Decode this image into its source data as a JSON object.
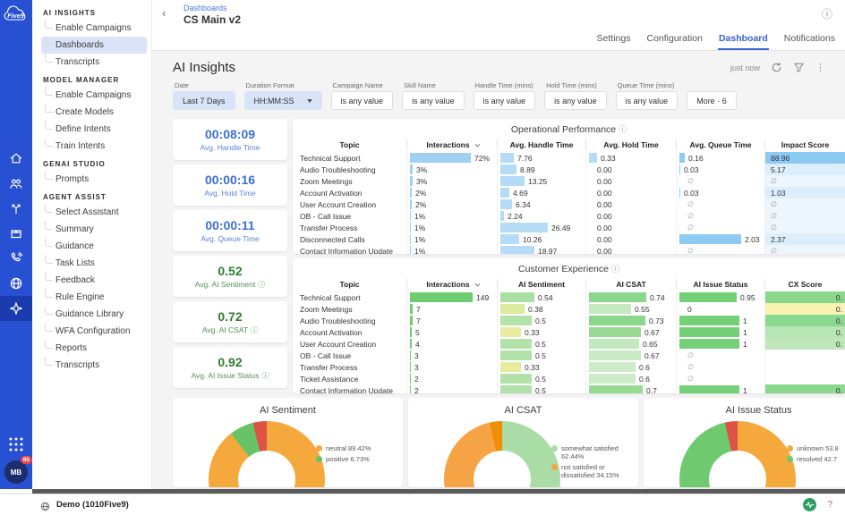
{
  "brand": {
    "logo_text": "Five9",
    "rail_color": "#2750d2",
    "accent_blue": "#3565d2"
  },
  "rail": {
    "icons": [
      {
        "name": "home"
      },
      {
        "name": "users"
      },
      {
        "name": "call-split"
      },
      {
        "name": "package"
      },
      {
        "name": "phone-outbound"
      },
      {
        "name": "globe"
      },
      {
        "name": "ai-assist",
        "selected": true
      }
    ],
    "avatar": {
      "initials": "MB",
      "badge": "85"
    }
  },
  "sidebar": {
    "sections": [
      {
        "title": "AI INSIGHTS",
        "items": [
          {
            "label": "Enable Campaigns"
          },
          {
            "label": "Dashboards",
            "selected": true
          },
          {
            "label": "Transcripts"
          }
        ]
      },
      {
        "title": "MODEL MANAGER",
        "items": [
          {
            "label": "Enable Campaigns"
          },
          {
            "label": "Create Models"
          },
          {
            "label": "Define Intents"
          },
          {
            "label": "Train Intents"
          }
        ]
      },
      {
        "title": "GENAI STUDIO",
        "items": [
          {
            "label": "Prompts"
          }
        ]
      },
      {
        "title": "AGENT ASSIST",
        "items": [
          {
            "label": "Select Assistant"
          },
          {
            "label": "Summary"
          },
          {
            "label": "Guidance"
          },
          {
            "label": "Task Lists"
          },
          {
            "label": "Feedback"
          },
          {
            "label": "Rule Engine"
          },
          {
            "label": "Guidance Library"
          },
          {
            "label": "WFA Configuration"
          },
          {
            "label": "Reports"
          },
          {
            "label": "Transcripts"
          }
        ]
      }
    ]
  },
  "header": {
    "breadcrumb": "Dashboards",
    "title": "CS Main v2",
    "tabs": [
      {
        "label": "Settings"
      },
      {
        "label": "Configuration"
      },
      {
        "label": "Dashboard",
        "active": true
      },
      {
        "label": "Notifications"
      }
    ]
  },
  "page": {
    "title": "AI Insights",
    "updated": "just now"
  },
  "filters": [
    {
      "label": "Date",
      "value": "Last 7 Days",
      "active": true
    },
    {
      "label": "Duration Format",
      "value": "HH:MM:SS",
      "active": true,
      "dropdown": true
    },
    {
      "label": "Campaign Name",
      "value": "is any value"
    },
    {
      "label": "Skill Name",
      "value": "is any value"
    },
    {
      "label": "Handle Time (mins)",
      "value": "is any value"
    },
    {
      "label": "Hold Time (mins)",
      "value": "is any value"
    },
    {
      "label": "Queue Time (mins)",
      "value": "is any value"
    },
    {
      "label": "",
      "value": "More · 6"
    }
  ],
  "kpis": [
    {
      "value": "00:08:09",
      "label": "Avg. Handle Time",
      "color": "blue"
    },
    {
      "value": "00:00:16",
      "label": "Avg. Hold Time",
      "color": "blue"
    },
    {
      "value": "00:00:11",
      "label": "Avg. Queue Time",
      "color": "blue"
    },
    {
      "value": "0.52",
      "label": "Avg. AI Sentiment",
      "color": "green",
      "info": true
    },
    {
      "value": "0.72",
      "label": "Avg. AI CSAT",
      "color": "green",
      "info": true
    },
    {
      "value": "0.92",
      "label": "Avg. AI Issue Status",
      "color": "green",
      "info": true
    }
  ],
  "op_table": {
    "title": "Operational Performance",
    "columns": [
      "Topic",
      "Interactions",
      "Avg. Handle Time",
      "Avg. Hold Time",
      "Avg. Queue Time",
      "Impact Score"
    ],
    "rows": [
      {
        "topic": "Technical Support",
        "interactions": {
          "v": "72%",
          "bar": 1
        },
        "aht": {
          "v": "7.76",
          "bar": 0.29
        },
        "hold": {
          "v": "0.33",
          "bar": 1
        },
        "queue": {
          "v": "0.16",
          "bar": 0.08
        },
        "impact": {
          "v": "88.96",
          "bg": "#8cc9f3"
        }
      },
      {
        "topic": "Audio Troubleshooting",
        "interactions": {
          "v": "3%",
          "bar": 0.042
        },
        "aht": {
          "v": "8.89",
          "bar": 0.34
        },
        "hold": {
          "v": "0.00",
          "bar": 0
        },
        "queue": {
          "v": "0.03",
          "bar": 0.015
        },
        "impact": {
          "v": "5.17",
          "bg": "#dcedfb"
        }
      },
      {
        "topic": "Zoom Meetings",
        "interactions": {
          "v": "3%",
          "bar": 0.042
        },
        "aht": {
          "v": "13.25",
          "bar": 0.5
        },
        "hold": {
          "v": "0.00",
          "bar": 0
        },
        "queue": {
          "v": "∅",
          "bar": 0
        },
        "impact": {
          "v": "∅",
          "bg": "#edf5fd"
        }
      },
      {
        "topic": "Account Activation",
        "interactions": {
          "v": "2%",
          "bar": 0.028
        },
        "aht": {
          "v": "4.69",
          "bar": 0.18
        },
        "hold": {
          "v": "0.00",
          "bar": 0
        },
        "queue": {
          "v": "0.03",
          "bar": 0.015
        },
        "impact": {
          "v": "1.03",
          "bg": "#dcedfb"
        }
      },
      {
        "topic": "User Account Creation",
        "interactions": {
          "v": "2%",
          "bar": 0.028
        },
        "aht": {
          "v": "6.34",
          "bar": 0.24
        },
        "hold": {
          "v": "0.00",
          "bar": 0
        },
        "queue": {
          "v": "∅",
          "bar": 0
        },
        "impact": {
          "v": "∅",
          "bg": "#edf5fd"
        }
      },
      {
        "topic": "OB - Call Issue",
        "interactions": {
          "v": "1%",
          "bar": 0.014
        },
        "aht": {
          "v": "2.24",
          "bar": 0.08
        },
        "hold": {
          "v": "0.00",
          "bar": 0
        },
        "queue": {
          "v": "∅",
          "bar": 0
        },
        "impact": {
          "v": "∅",
          "bg": "#edf5fd"
        }
      },
      {
        "topic": "Transfer Process",
        "interactions": {
          "v": "1%",
          "bar": 0.014
        },
        "aht": {
          "v": "26.49",
          "bar": 1
        },
        "hold": {
          "v": "0.00",
          "bar": 0
        },
        "queue": {
          "v": "∅",
          "bar": 0
        },
        "impact": {
          "v": "∅",
          "bg": "#edf5fd"
        }
      },
      {
        "topic": "Disconnected Calls",
        "interactions": {
          "v": "1%",
          "bar": 0.014
        },
        "aht": {
          "v": "10.26",
          "bar": 0.39
        },
        "hold": {
          "v": "0.00",
          "bar": 0
        },
        "queue": {
          "v": "2.03",
          "bar": 1
        },
        "impact": {
          "v": "2.37",
          "bg": "#dcedfb"
        }
      },
      {
        "topic": "Contact Information Update",
        "interactions": {
          "v": "1%",
          "bar": 0.014
        },
        "aht": {
          "v": "18.97",
          "bar": 0.72
        },
        "hold": {
          "v": "0.00",
          "bar": 0
        },
        "queue": {
          "v": "∅",
          "bar": 0
        },
        "impact": {
          "v": "∅",
          "bg": "#edf5fd"
        }
      }
    ]
  },
  "cx_table": {
    "title": "Customer Experience",
    "columns": [
      "Topic",
      "Interactions",
      "AI Sentiment",
      "AI CSAT",
      "AI Issue Status",
      "CX Score"
    ],
    "rows": [
      {
        "topic": "Technical Support",
        "interactions": {
          "v": "149",
          "bar": 1,
          "c": "#6ecc72"
        },
        "sent": {
          "v": "0.54",
          "bar": 0.54,
          "c": "#a9dfa3"
        },
        "csat": {
          "v": "0.74",
          "bar": 0.74,
          "c": "#8bd78c"
        },
        "issue": {
          "v": "0.95",
          "bar": 0.95,
          "c": "#74d077"
        },
        "cx": {
          "v": "0.",
          "bg": "#8ad88d"
        }
      },
      {
        "topic": "Zoom Meetings",
        "interactions": {
          "v": "7",
          "bar": 0.047,
          "c": "#6ecc72"
        },
        "sent": {
          "v": "0.38",
          "bar": 0.38,
          "c": "#dcea9e"
        },
        "csat": {
          "v": "0.55",
          "bar": 0.55,
          "c": "#c6e9c1"
        },
        "issue": {
          "v": "0",
          "bar": 0
        },
        "cx": {
          "v": "0.",
          "bg": "#f8f3b2"
        }
      },
      {
        "topic": "Audio Troubleshooting",
        "interactions": {
          "v": "7",
          "bar": 0.047,
          "c": "#6ecc72"
        },
        "sent": {
          "v": "0.5",
          "bar": 0.5,
          "c": "#b2e1a9"
        },
        "csat": {
          "v": "0.73",
          "bar": 0.73,
          "c": "#8bd78c"
        },
        "issue": {
          "v": "1",
          "bar": 1,
          "c": "#74d077"
        },
        "cx": {
          "v": "0.",
          "bg": "#8ad88d"
        }
      },
      {
        "topic": "Account Activation",
        "interactions": {
          "v": "5",
          "bar": 0.034,
          "c": "#6ecc72"
        },
        "sent": {
          "v": "0.33",
          "bar": 0.33,
          "c": "#e9ec9f"
        },
        "csat": {
          "v": "0.67",
          "bar": 0.67,
          "c": "#97da93"
        },
        "issue": {
          "v": "1",
          "bar": 1,
          "c": "#74d077"
        },
        "cx": {
          "v": "0.",
          "bg": "#b7e5b3"
        }
      },
      {
        "topic": "User Account Creation",
        "interactions": {
          "v": "4",
          "bar": 0.027,
          "c": "#6ecc72"
        },
        "sent": {
          "v": "0.5",
          "bar": 0.5,
          "c": "#b2e1a9"
        },
        "csat": {
          "v": "0.65",
          "bar": 0.65,
          "c": "#c2e8bd"
        },
        "issue": {
          "v": "1",
          "bar": 1,
          "c": "#74d077"
        },
        "cx": {
          "v": "0.",
          "bg": "#bfe7ba"
        }
      },
      {
        "topic": "OB - Call Issue",
        "interactions": {
          "v": "3",
          "bar": 0.02,
          "c": "#6ecc72"
        },
        "sent": {
          "v": "0.5",
          "bar": 0.5,
          "c": "#b2e1a9"
        },
        "csat": {
          "v": "0.67",
          "bar": 0.67,
          "c": "#c9eac5"
        },
        "issue": {
          "v": "∅",
          "bar": 0
        },
        "cx": {
          "v": "",
          "bg": ""
        }
      },
      {
        "topic": "Transfer Process",
        "interactions": {
          "v": "3",
          "bar": 0.02,
          "c": "#6ecc72"
        },
        "sent": {
          "v": "0.33",
          "bar": 0.33,
          "c": "#e9ec9f"
        },
        "csat": {
          "v": "0.6",
          "bar": 0.6,
          "c": "#cdebc8"
        },
        "issue": {
          "v": "∅",
          "bar": 0
        },
        "cx": {
          "v": "",
          "bg": ""
        }
      },
      {
        "topic": "Ticket Assistance",
        "interactions": {
          "v": "2",
          "bar": 0.013,
          "c": "#6ecc72"
        },
        "sent": {
          "v": "0.5",
          "bar": 0.5,
          "c": "#b2e1a9"
        },
        "csat": {
          "v": "0.6",
          "bar": 0.6,
          "c": "#cdebc8"
        },
        "issue": {
          "v": "∅",
          "bar": 0
        },
        "cx": {
          "v": "",
          "bg": ""
        }
      },
      {
        "topic": "Contact Information Update",
        "interactions": {
          "v": "2",
          "bar": 0.013,
          "c": "#6ecc72"
        },
        "sent": {
          "v": "0.5",
          "bar": 0.5,
          "c": "#b2e1a9"
        },
        "csat": {
          "v": "0.7",
          "bar": 0.7,
          "c": "#97da93"
        },
        "issue": {
          "v": "1",
          "bar": 1,
          "c": "#74d077"
        },
        "cx": {
          "v": "0.",
          "bg": "#8ad88d"
        }
      }
    ]
  },
  "chart_data": [
    {
      "type": "donut",
      "title": "AI Sentiment",
      "slices": [
        {
          "label": "neutral",
          "pct": 89.42,
          "color": "#f5a83c"
        },
        {
          "label": "positive",
          "pct": 6.73,
          "color": "#68c266"
        },
        {
          "label": "",
          "pct": 3.85,
          "color": "#dd5244"
        }
      ],
      "legend": [
        {
          "label": "neutral 89.42%",
          "color": "#f5a83c"
        },
        {
          "label": "positive 6.73%",
          "color": "#68c266"
        }
      ]
    },
    {
      "type": "donut",
      "title": "AI CSAT",
      "slices": [
        {
          "label": "somewhat satisfied",
          "pct": 62.44,
          "color": "#aadca5"
        },
        {
          "label": "not satisfied or dissatisfied",
          "pct": 34.15,
          "color": "#f5a344"
        },
        {
          "label": "",
          "pct": 3.41,
          "color": "#ef8e00"
        }
      ],
      "legend": [
        {
          "label": "somewhat satisfied 62.44%",
          "color": "#aadca5"
        },
        {
          "label": "not satisfied or dissatisfied 34.15%",
          "color": "#f5a344"
        }
      ]
    },
    {
      "type": "donut",
      "title": "AI Issue Status",
      "slices": [
        {
          "label": "unknown",
          "pct": 53.8,
          "color": "#f5a83c"
        },
        {
          "label": "resolved",
          "pct": 42.7,
          "color": "#6fca6f"
        },
        {
          "label": "",
          "pct": 3.5,
          "color": "#dd5244"
        }
      ],
      "legend": [
        {
          "label": "unknown 53.8",
          "color": "#f5a83c"
        },
        {
          "label": "resolved 42.7",
          "color": "#6fca6f"
        }
      ]
    }
  ],
  "statusbar": {
    "text": "Demo (1010Five9)"
  }
}
